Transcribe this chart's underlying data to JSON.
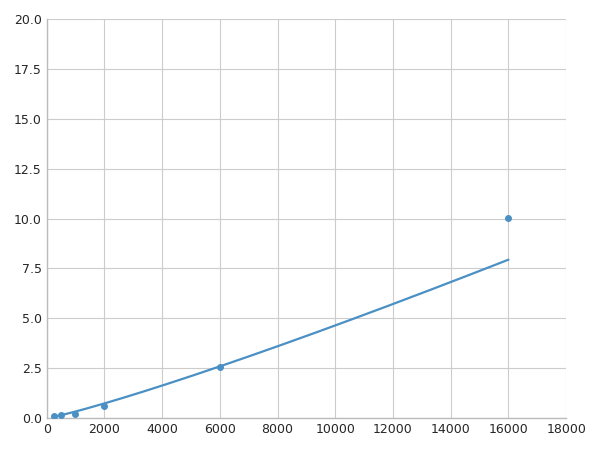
{
  "x": [
    250,
    500,
    1000,
    2000,
    6000,
    16000
  ],
  "y": [
    0.09,
    0.18,
    0.22,
    0.6,
    2.55,
    10.05
  ],
  "line_color": "#4a90c4",
  "marker_color": "#4a90c4",
  "marker_size": 4,
  "linewidth": 1.6,
  "xlim": [
    0,
    18000
  ],
  "ylim": [
    0,
    20
  ],
  "xticks": [
    0,
    2000,
    4000,
    6000,
    8000,
    10000,
    12000,
    14000,
    16000,
    18000
  ],
  "yticks": [
    0.0,
    2.5,
    5.0,
    7.5,
    10.0,
    12.5,
    15.0,
    17.5,
    20.0
  ],
  "grid_color": "#cccccc",
  "background_color": "#ffffff",
  "tick_fontsize": 9,
  "figsize": [
    6.0,
    4.5
  ],
  "dpi": 100
}
